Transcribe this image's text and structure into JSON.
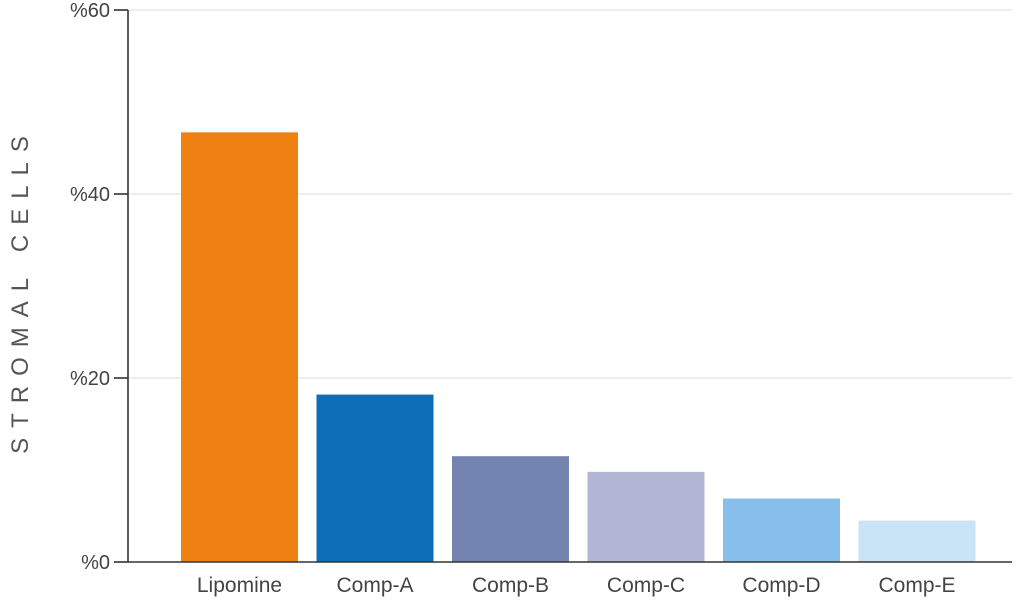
{
  "chart_data": {
    "type": "bar",
    "title": "",
    "xlabel": "",
    "ylabel": "STROMAL CELLS",
    "categories": [
      "Lipomine",
      "Comp-A",
      "Comp-B",
      "Comp-C",
      "Comp-D",
      "Comp-E"
    ],
    "values": [
      46.7,
      18.2,
      11.5,
      9.8,
      6.9,
      4.5
    ],
    "colors": [
      "#EE8112",
      "#0E6EB5",
      "#7484B0",
      "#B1B7D4",
      "#86BFEA",
      "#C9E3F7"
    ],
    "ylim": [
      0,
      60
    ],
    "yticks": [
      0,
      20,
      40,
      60
    ],
    "ytick_labels": [
      "%0",
      "%20",
      "%40",
      "%60"
    ],
    "grid": true,
    "legend": "none"
  }
}
